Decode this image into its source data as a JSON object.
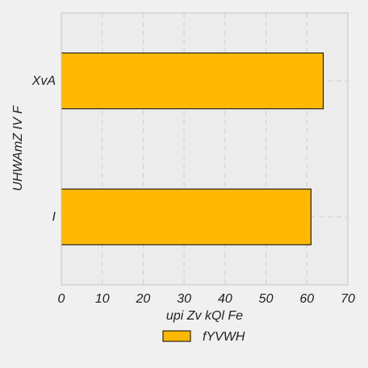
{
  "chart_data": {
    "type": "bar",
    "orientation": "horizontal",
    "categories": [
      "I",
      "XvA"
    ],
    "series": [
      {
        "name": "fYVWH",
        "values": [
          61,
          64
        ]
      }
    ],
    "title": "",
    "xlabel": "upi  Zv kQl Fe",
    "ylabel": "UHWAmZ IV  F",
    "xlim": [
      0,
      70
    ],
    "xticks": [
      0,
      10,
      20,
      30,
      40,
      50,
      60,
      70
    ],
    "grid": true,
    "legend_position": "bottom-center",
    "colors": {
      "bar_fill": "#ffb800",
      "bar_stroke": "#000000",
      "plot_background": "#ececec",
      "page_background": "#f0f0f0",
      "grid": "#cfcfcf",
      "frame": "#c4c4c4"
    }
  }
}
